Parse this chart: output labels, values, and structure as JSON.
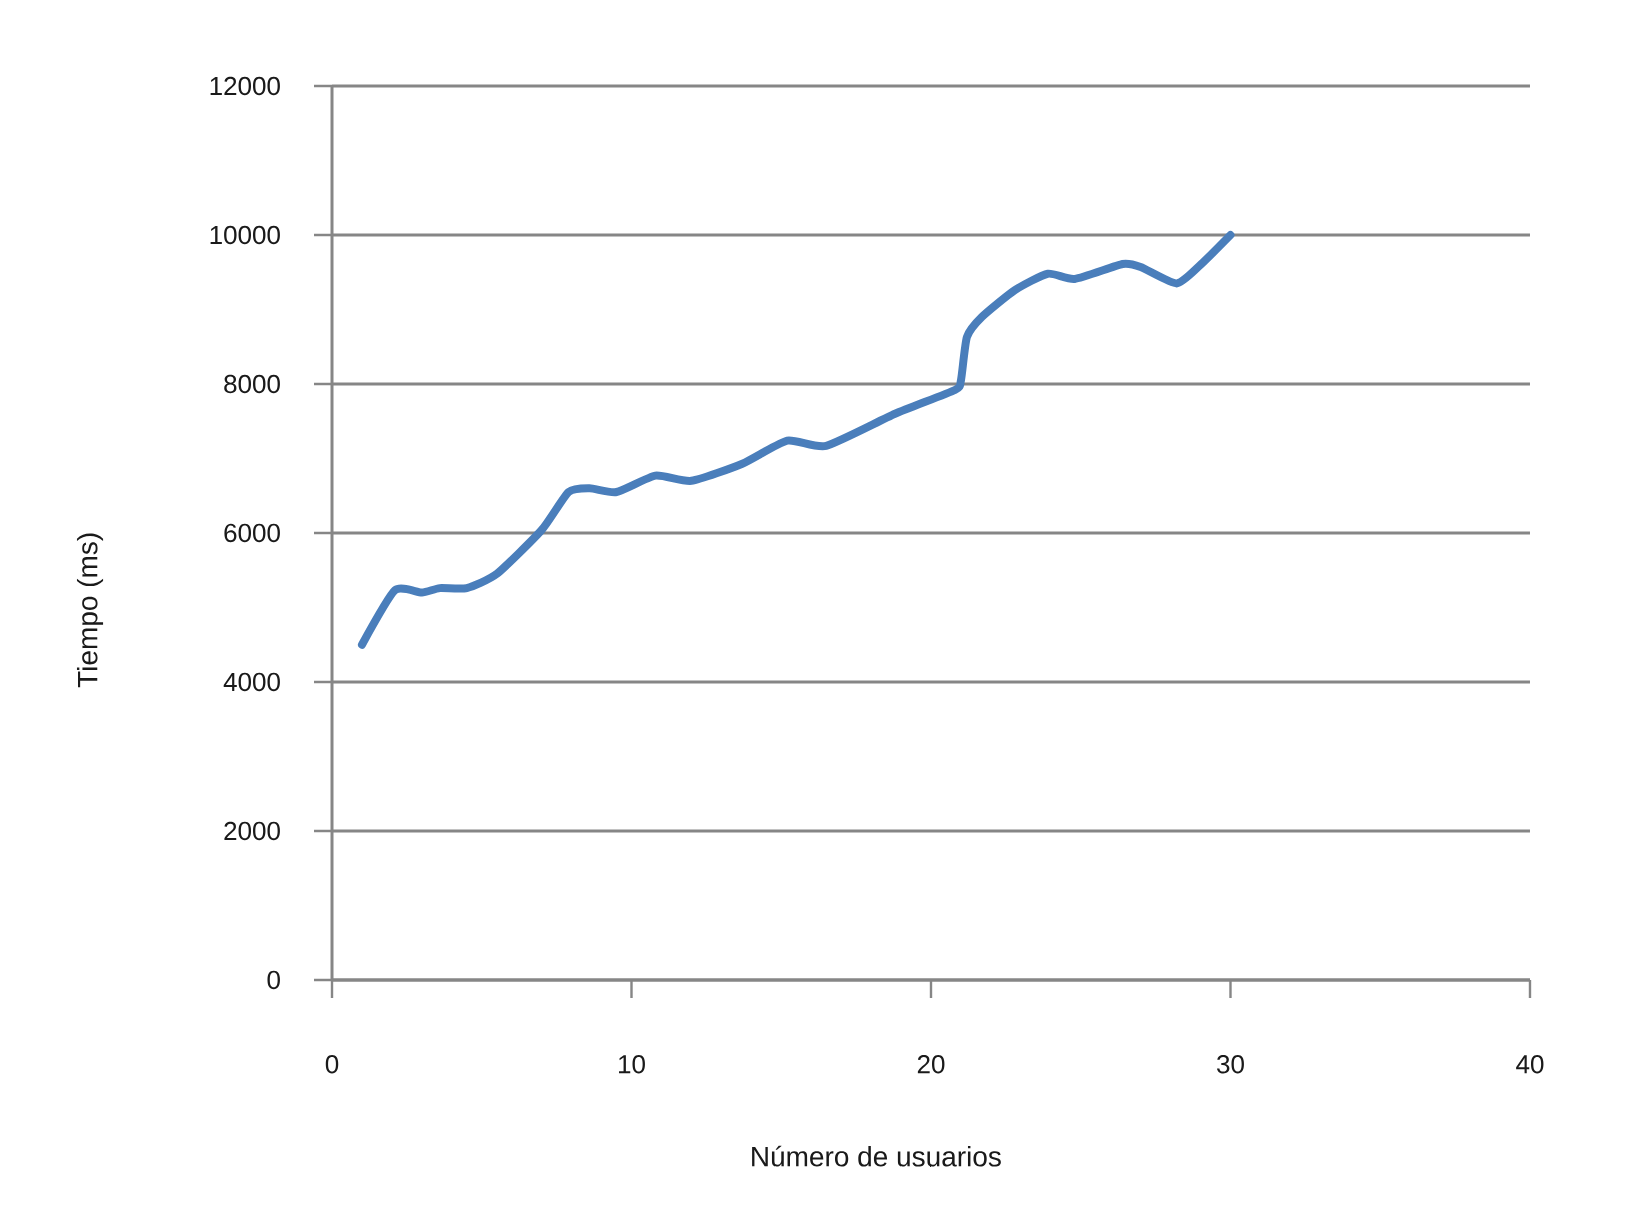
{
  "chart_data": {
    "type": "line",
    "xlabel": "Número de usuarios",
    "ylabel": "Tiempo (ms)",
    "x": [
      1,
      2.1,
      3.0,
      3.6,
      4.5,
      5.5,
      7.0,
      7.9,
      8.6,
      9.5,
      10.8,
      12.0,
      13.7,
      15.2,
      16.5,
      18.8,
      20.8,
      21.0,
      21.2,
      21.7,
      22.8,
      23.9,
      24.8,
      26.4,
      27.0,
      28.2,
      29.0,
      30
    ],
    "values": [
      4500,
      5230,
      5200,
      5260,
      5260,
      5450,
      6040,
      6550,
      6600,
      6550,
      6770,
      6700,
      6930,
      7240,
      7170,
      7600,
      7920,
      8050,
      8630,
      8900,
      9260,
      9480,
      9410,
      9610,
      9570,
      9350,
      9600,
      10000
    ],
    "color": "#4a7ebb",
    "line_style": "solid",
    "marker": "none",
    "xlim": [
      0,
      40
    ],
    "ylim": [
      0,
      12000
    ],
    "xticks": [
      0,
      10,
      20,
      30,
      40
    ],
    "yticks": [
      0,
      2000,
      4000,
      6000,
      8000,
      10000,
      12000
    ],
    "grid": "y"
  }
}
